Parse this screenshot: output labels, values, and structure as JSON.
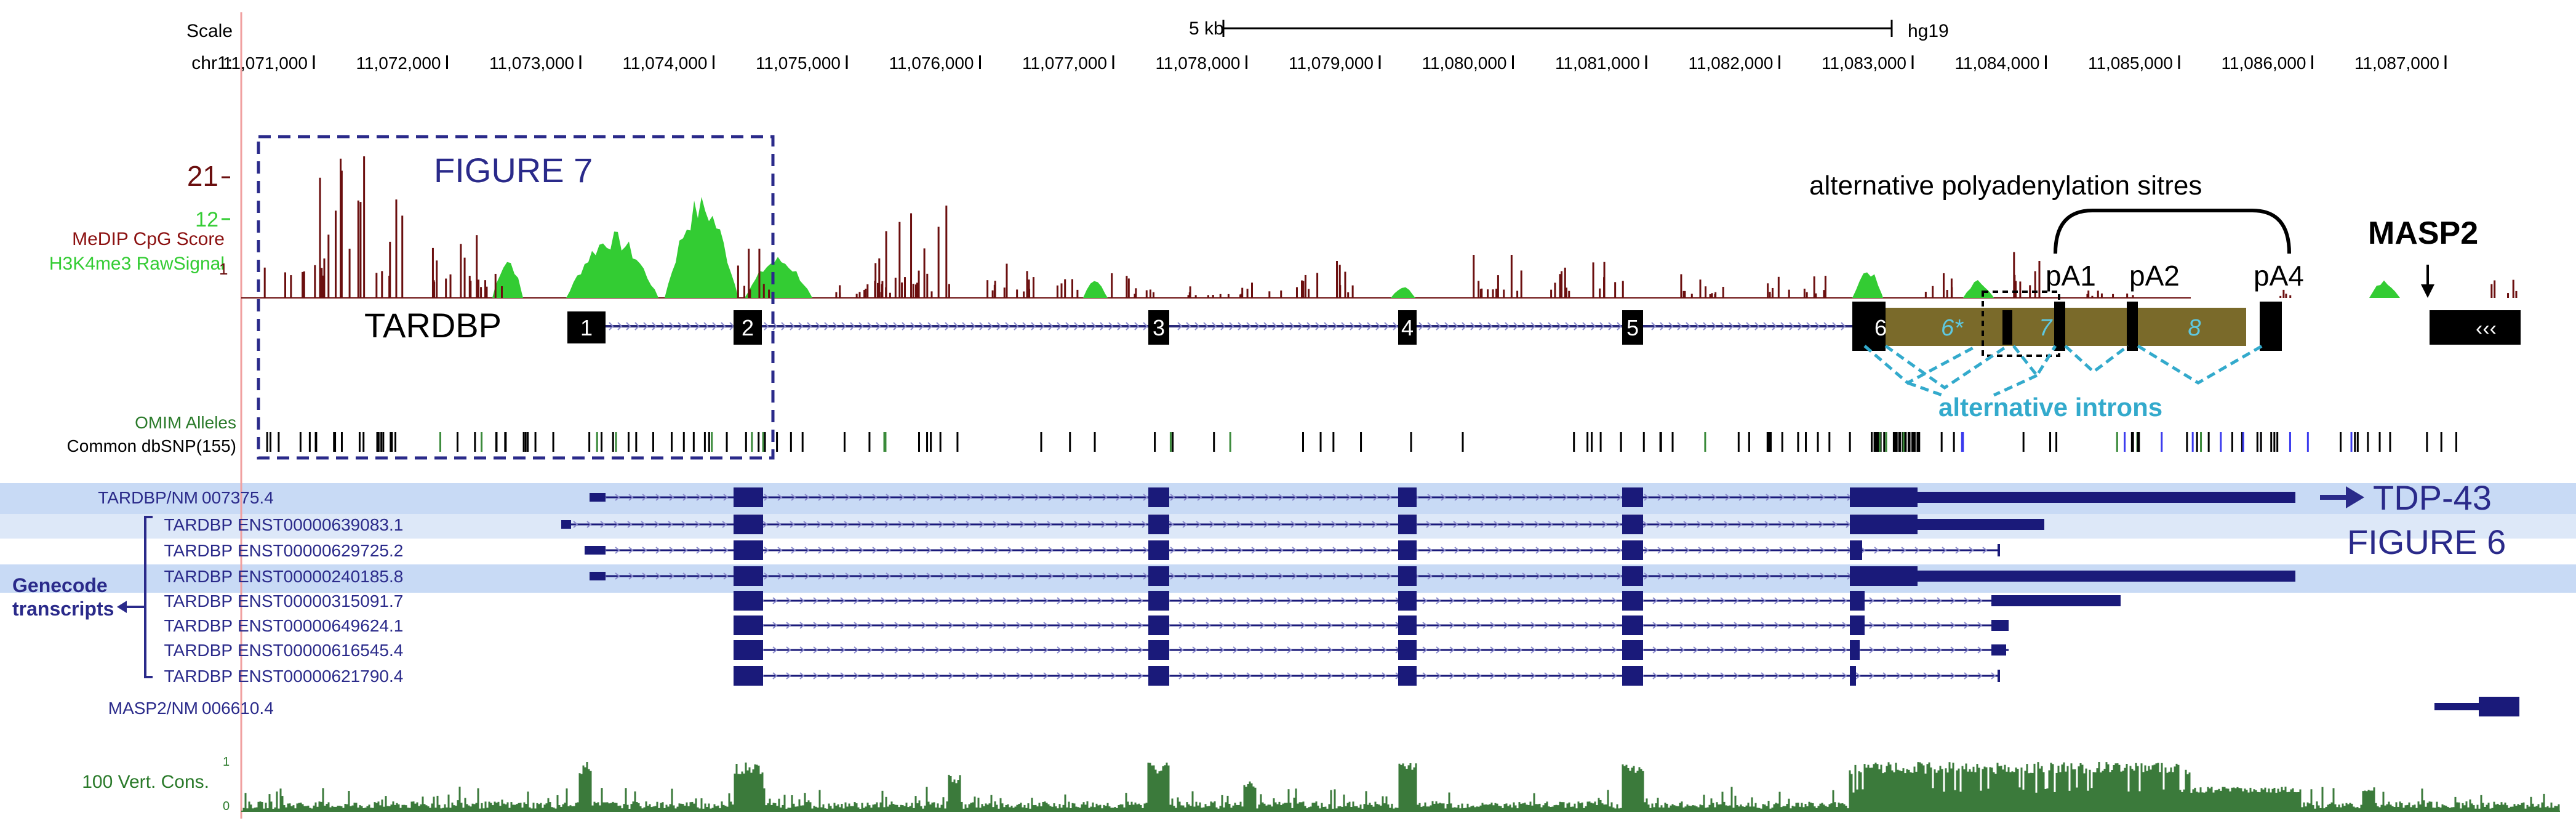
{
  "scale": {
    "scale_label": "Scale",
    "chrom_label": "chr1:",
    "bar_label": "5 kb",
    "assembly": "hg19",
    "ticks": [
      "11,071,000",
      "11,072,000",
      "11,073,000",
      "11,074,000",
      "11,075,000",
      "11,076,000",
      "11,077,000",
      "11,078,000",
      "11,079,000",
      "11,080,000",
      "11,081,000",
      "11,082,000",
      "11,083,000",
      "11,084,000",
      "11,085,000",
      "11,086,000",
      "11,087,000"
    ]
  },
  "tracks": {
    "medip_label": "MeDIP CpG Score",
    "h3k4me3_label": "H3K4me3 RawSignal",
    "medip_max": "21",
    "h3k4me3_max": "12",
    "medip_min": "1",
    "omim_label": "OMIM Alleles",
    "dbsnp_label": "Common dbSNP(155)",
    "cons_label": "100 Vert. Cons.",
    "cons_max": "1",
    "cons_min": "0"
  },
  "annotations": {
    "figure7": "FIGURE 7",
    "figure6": "FIGURE 6",
    "tardbp_gene": "TARDBP",
    "masp2_gene": "MASP2",
    "polya_title": "alternative polyadenylation sitres",
    "pa1": "pA1",
    "pa2": "pA2",
    "pa4": "pA4",
    "alt_introns": "alternative introns",
    "tdp43": "TDP-43",
    "genecode": "Genecode",
    "transcripts": "transcripts"
  },
  "exons": [
    "1",
    "2",
    "3",
    "4",
    "5",
    "6",
    "6*",
    "7",
    "8"
  ],
  "transcripts": [
    {
      "gene": "TARDBP/NM",
      "id": "007375.4"
    },
    {
      "gene": "TARDBP",
      "id": "ENST00000639083.1"
    },
    {
      "gene": "TARDBP",
      "id": "ENST00000629725.2"
    },
    {
      "gene": "TARDBP",
      "id": "ENST00000240185.8"
    },
    {
      "gene": "TARDBP",
      "id": "ENST00000315091.7"
    },
    {
      "gene": "TARDBP",
      "id": "ENST00000649624.1"
    },
    {
      "gene": "TARDBP",
      "id": "ENST00000616545.4"
    },
    {
      "gene": "TARDBP",
      "id": "ENST00000621790.4"
    }
  ],
  "masp2_transcript": {
    "gene": "MASP2/NM",
    "id": "006610.4"
  },
  "colors": {
    "medip": "#6b0f0f",
    "h3k4me3": "#33cc33",
    "navy": "#1a1a7a",
    "highlight": "#c8daf5",
    "cyan": "#33aacc",
    "olive": "#7a6a2a",
    "cons": "#3b7a3b"
  }
}
